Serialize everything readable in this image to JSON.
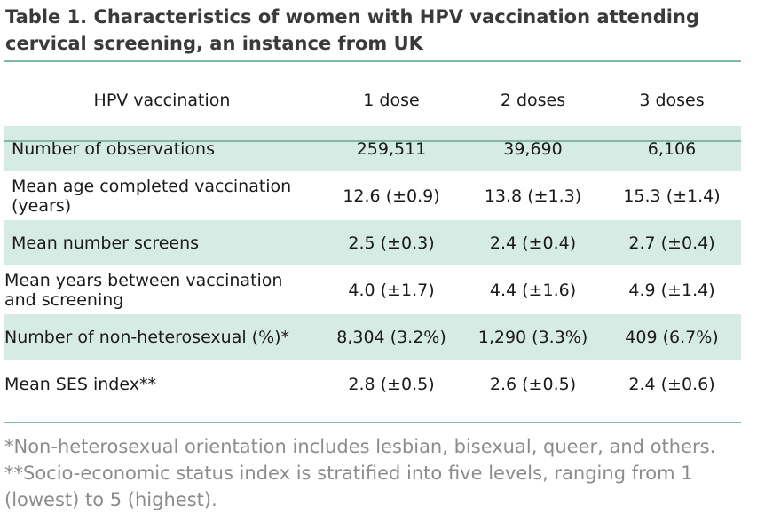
{
  "title": "Table 1. Characteristics of women with HPV vaccination attending cervical screening, an instance from UK",
  "table": {
    "headers": [
      "HPV vaccination",
      "1 dose",
      "2 doses",
      "3 doses"
    ],
    "rows": [
      {
        "label": "Number of observations",
        "values": [
          "259,511",
          "39,690",
          "6,106"
        ]
      },
      {
        "label": "Mean age completed vaccination (years)",
        "values": [
          "12.6 (±0.9)",
          "13.8 (±1.3)",
          "15.3 (±1.4)"
        ]
      },
      {
        "label": "Mean number screens",
        "values": [
          "2.5 (±0.3)",
          "2.4 (±0.4)",
          "2.7 (±0.4)"
        ]
      },
      {
        "label": "Mean years between vaccination and screening",
        "values": [
          "4.0 (±1.7)",
          "4.4 (±1.6)",
          "4.9 (±1.4)"
        ]
      },
      {
        "label": "Number of non-heterosexual (%)*",
        "values": [
          "8,304 (3.2%)",
          "1,290 (3.3%)",
          "409 (6.7%)"
        ]
      },
      {
        "label": "Mean SES index**",
        "values": [
          "2.8 (±0.5)",
          "2.6 (±0.5)",
          "2.4 (±0.6)"
        ]
      }
    ]
  },
  "footnotes": [
    "*Non-heterosexual orientation includes lesbian, bisexual, queer, and others.",
    "**Socio-economic status index is stratified into five levels, ranging from 1 (lowest) to 5 (highest)."
  ],
  "colors": {
    "rule": "#7fb9a8",
    "shade": "#d7ebe5"
  }
}
